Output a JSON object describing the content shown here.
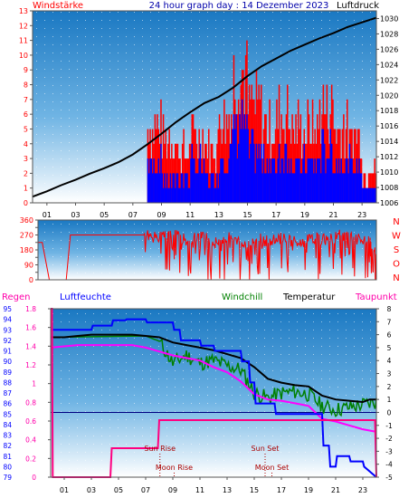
{
  "header": {
    "left_label": "Windstärke",
    "title": "24 hour graph day : 14 Dezember 2023",
    "right_label": "Luftdruck"
  },
  "legend": {
    "regen": "Regen",
    "luftfeuchte": "Luftfeuchte",
    "windchill": "Windchill",
    "temperatur": "Temperatur",
    "taupunkt": "Taupunkt"
  },
  "colors": {
    "sky_top": "#1a7fc4",
    "sky_bottom": "#ffffff",
    "wind_gust": "#ff0000",
    "wind_avg": "#0000ff",
    "pressure": "#000000",
    "direction": "#ff0000",
    "humidity": "#0000ff",
    "temperature": "#000000",
    "windchill": "#008000",
    "dewpoint": "#ff00ff",
    "rain": "#ff0080",
    "zero_line": "#000080"
  },
  "chart_data": [
    {
      "type": "line",
      "title": "24 hour graph day : 14 Dezember 2023",
      "x_ticks": [
        "01",
        "03",
        "05",
        "07",
        "09",
        "11",
        "13",
        "15",
        "17",
        "19",
        "21",
        "23"
      ],
      "xlim": [
        0,
        24
      ],
      "y_left": {
        "label": "Windstärke",
        "ylim": [
          0,
          13
        ],
        "ticks": [
          0,
          1,
          2,
          3,
          4,
          5,
          6,
          7,
          8,
          9,
          10,
          11,
          12,
          13
        ]
      },
      "y_right": {
        "label": "Luftdruck",
        "ylim": [
          1006,
          1031
        ],
        "ticks": [
          1006,
          1008,
          1010,
          1012,
          1014,
          1016,
          1018,
          1020,
          1022,
          1024,
          1026,
          1028,
          1030
        ]
      },
      "series": [
        {
          "name": "Luftdruck",
          "axis": "right",
          "x": [
            0,
            1,
            2,
            3,
            4,
            5,
            6,
            7,
            8,
            9,
            10,
            11,
            12,
            13,
            14,
            15,
            16,
            17,
            18,
            19,
            20,
            21,
            22,
            23,
            24
          ],
          "y": [
            1006.8,
            1007.5,
            1008.3,
            1009.0,
            1009.8,
            1010.5,
            1011.3,
            1012.3,
            1013.6,
            1015.0,
            1016.5,
            1017.8,
            1019.0,
            1019.8,
            1021.0,
            1022.5,
            1023.8,
            1024.8,
            1025.8,
            1026.6,
            1027.4,
            1028.1,
            1028.9,
            1029.5,
            1030.1
          ]
        }
      ],
      "wind_gust_hourly": [
        0,
        0,
        0,
        0,
        0,
        0,
        0,
        0,
        7,
        6,
        5,
        6,
        5,
        8,
        12,
        9,
        7,
        8,
        7,
        7,
        9,
        7,
        6,
        3
      ],
      "wind_avg_hourly": [
        0,
        0,
        0,
        0,
        0,
        0,
        0,
        0,
        3,
        2,
        2,
        3,
        2,
        4,
        6,
        4,
        3,
        4,
        3,
        3,
        4,
        3,
        3,
        1
      ]
    },
    {
      "type": "line",
      "title": "",
      "x_ticks": [],
      "xlim": [
        0,
        24
      ],
      "y_left": {
        "label": "",
        "ylim": [
          0,
          360
        ],
        "ticks": [
          0,
          45,
          90,
          135,
          180,
          225,
          270,
          315,
          360
        ]
      },
      "y_right": {
        "label": "",
        "ticks": [
          "N",
          "W",
          "S",
          "O",
          "N"
        ]
      },
      "series": [
        {
          "name": "",
          "x": [
            0,
            0.3,
            0.8,
            1.0,
            1.3,
            2.0,
            2.3,
            3.0,
            7.5,
            8.5,
            9.5,
            10.5,
            11.5,
            12.5,
            13.5,
            14.5,
            15.5,
            16.5,
            17.5,
            18.5,
            19.5,
            20.5,
            21.5,
            22.5,
            23.5,
            24
          ],
          "y": [
            225,
            225,
            0,
            0,
            0,
            0,
            270,
            270,
            270,
            250,
            280,
            240,
            270,
            220,
            260,
            210,
            250,
            230,
            260,
            220,
            250,
            240,
            270,
            250,
            230,
            140
          ]
        }
      ]
    },
    {
      "type": "line",
      "title": "",
      "x_ticks": [
        "01",
        "03",
        "05",
        "07",
        "09",
        "11",
        "13",
        "15",
        "17",
        "19",
        "21",
        "23"
      ],
      "xlim": [
        0,
        24
      ],
      "y_humidity": {
        "label": "Luftfeuchte",
        "ylim": [
          79,
          95
        ],
        "ticks": [
          79,
          80,
          81,
          82,
          83,
          84,
          85,
          86,
          87,
          88,
          89,
          90,
          91,
          92,
          93,
          94,
          95
        ]
      },
      "y_rain": {
        "label": "Regen",
        "ylim": [
          0,
          1.8
        ],
        "ticks": [
          0,
          0.2,
          0.4,
          0.6,
          0.8,
          1,
          1.2,
          1.4,
          1.6,
          1.8
        ]
      },
      "y_temp": {
        "label": "Temperatur",
        "ylim": [
          -5,
          8
        ],
        "ticks": [
          -5,
          -4,
          -3,
          -2,
          -1,
          0,
          1,
          2,
          3,
          4,
          5,
          6,
          7,
          8
        ]
      },
      "series": [
        {
          "name": "Luftfeuchte",
          "axis": "humidity",
          "x": [
            0,
            3,
            3.1,
            4.5,
            4.6,
            5.5,
            5.6,
            7.0,
            7.1,
            9.0,
            9.1,
            9.5,
            9.6,
            11.0,
            11.1,
            12.0,
            12.1,
            14.0,
            14.1,
            14.6,
            14.7,
            15.0,
            15.1,
            16.5,
            16.6,
            20.0,
            20.1,
            20.5,
            20.6,
            21.0,
            21.1,
            22.0,
            22.1,
            23.0,
            23.1,
            24
          ],
          "y": [
            93,
            93,
            93.4,
            93.4,
            93.9,
            93.9,
            94,
            94,
            93.7,
            93.7,
            93,
            93,
            92,
            92,
            91.5,
            91.5,
            91,
            91,
            90,
            90,
            88,
            88,
            86,
            86,
            85,
            85,
            82,
            82,
            80,
            80,
            81,
            81,
            80.5,
            80.5,
            80,
            79
          ]
        },
        {
          "name": "Temperatur",
          "axis": "temp",
          "x": [
            0,
            1,
            2,
            3,
            4,
            5,
            6,
            7,
            8,
            9,
            10,
            11,
            12,
            13,
            14,
            15,
            16,
            17,
            18,
            19,
            20,
            21,
            22,
            23,
            23.5,
            24
          ],
          "y": [
            5.8,
            5.8,
            5.9,
            6.0,
            6.0,
            6.0,
            6.0,
            5.9,
            5.8,
            5.4,
            5.2,
            5.0,
            4.8,
            4.5,
            4.2,
            3.5,
            2.6,
            2.3,
            2.1,
            2.0,
            1.3,
            1.0,
            0.9,
            0.8,
            1.0,
            1.0
          ]
        },
        {
          "name": "Windchill",
          "axis": "temp",
          "x": [
            0,
            7,
            8,
            9,
            10,
            11,
            12,
            13,
            14,
            15,
            16,
            17,
            18,
            19,
            20,
            21,
            22,
            23,
            24
          ],
          "y": [
            5.8,
            5.9,
            5.5,
            3.8,
            4.4,
            3.8,
            4.0,
            3.6,
            3.3,
            1.5,
            1.1,
            1.5,
            1.6,
            1.4,
            0.5,
            0.2,
            0.4,
            0.6,
            0.8
          ]
        },
        {
          "name": "Taupunkt",
          "axis": "temp",
          "x": [
            0,
            1,
            2,
            3,
            4,
            5,
            6,
            7,
            8,
            9,
            10,
            11,
            12,
            13,
            14,
            15,
            16,
            17,
            18,
            19,
            20,
            21,
            22,
            23,
            24
          ],
          "y": [
            5.0,
            5.1,
            5.2,
            5.2,
            5.2,
            5.2,
            5.2,
            5.0,
            4.7,
            4.4,
            4.2,
            4.0,
            3.5,
            3.1,
            2.4,
            1.4,
            1.0,
            0.9,
            0.7,
            0.5,
            -0.5,
            -0.7,
            -1.0,
            -1.3,
            -1.5
          ]
        },
        {
          "name": "Regen",
          "axis": "rain",
          "x": [
            0,
            0.1,
            0.15,
            4.4,
            4.5,
            7.9,
            8.0,
            23.9,
            24
          ],
          "y": [
            1.8,
            1.8,
            0,
            0,
            0.31,
            0.31,
            0.61,
            0.61,
            0
          ]
        }
      ],
      "annotations": [
        {
          "text": "Sun Rise",
          "x": 8.05
        },
        {
          "text": "Moon Rise",
          "x": 9.1
        },
        {
          "text": "Sun Set",
          "x": 15.8
        },
        {
          "text": "Moon Set",
          "x": 16.3
        }
      ]
    }
  ]
}
